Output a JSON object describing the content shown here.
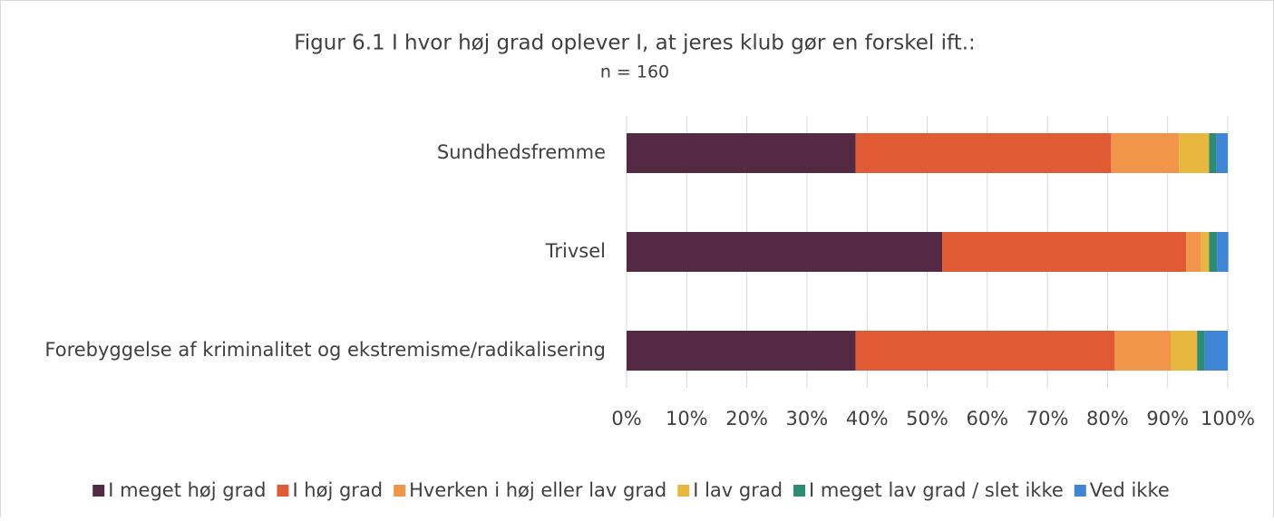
{
  "chart_data": {
    "type": "stacked_bar_horizontal",
    "title": "Figur 6.1 I hvor høj grad oplever I, at jeres klub gør en forskel ift.:",
    "subtitle": "n = 160",
    "categories": [
      "Sundhedsfremme",
      "Trivsel",
      "Forebyggelse af kriminalitet og ekstremisme/radikalisering"
    ],
    "series": [
      {
        "name": "I meget høj grad",
        "color": "#532943",
        "values": [
          38.1,
          52.5,
          38.1
        ]
      },
      {
        "name": "I høj grad",
        "color": "#e05a33",
        "values": [
          42.5,
          40.6,
          43.1
        ]
      },
      {
        "name": "Hverken i høj eller lav grad",
        "color": "#f0954a",
        "values": [
          11.3,
          2.5,
          9.3
        ]
      },
      {
        "name": "I lav grad",
        "color": "#e8b83e",
        "values": [
          5.0,
          1.3,
          4.4
        ]
      },
      {
        "name": "I meget lav grad / slet ikke",
        "color": "#2e8b74",
        "values": [
          1.2,
          1.3,
          1.3
        ]
      },
      {
        "name": "Ved ikke",
        "color": "#3f87d6",
        "values": [
          1.9,
          1.9,
          3.8
        ]
      }
    ],
    "xlim": [
      0,
      100
    ],
    "xticks": [
      {
        "value": 0,
        "label": "0%"
      },
      {
        "value": 10,
        "label": "10%"
      },
      {
        "value": 20,
        "label": "20%"
      },
      {
        "value": 30,
        "label": "30%"
      },
      {
        "value": 40,
        "label": "40%"
      },
      {
        "value": 50,
        "label": "50%"
      },
      {
        "value": 60,
        "label": "60%"
      },
      {
        "value": 70,
        "label": "70%"
      },
      {
        "value": 80,
        "label": "80%"
      },
      {
        "value": 90,
        "label": "90%"
      },
      {
        "value": 100,
        "label": "100%"
      }
    ],
    "grid": true,
    "legend": "bottom"
  }
}
